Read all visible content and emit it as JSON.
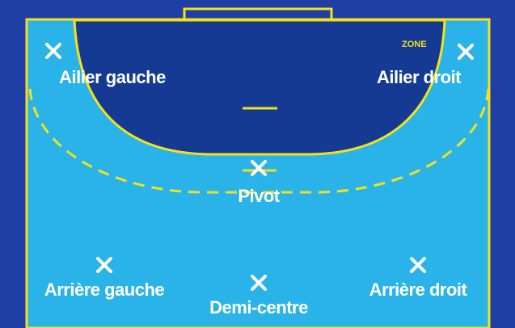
{
  "colors": {
    "background": "#1f3fa6",
    "court": "#2ab3e8",
    "goal_area": "#143a94",
    "lines": "#f5e11a",
    "markers": "#ffffff"
  },
  "zone_label": "ZONE",
  "positions": {
    "ailier_gauche": "Ailier gauche",
    "ailier_droit": "Ailier droit",
    "pivot": "Pivot",
    "arriere_gauche": "Arrière gauche",
    "demi_centre": "Demi-centre",
    "arriere_droit": "Arrière droit"
  },
  "icons": {
    "player_marker": "x-mark-icon"
  }
}
